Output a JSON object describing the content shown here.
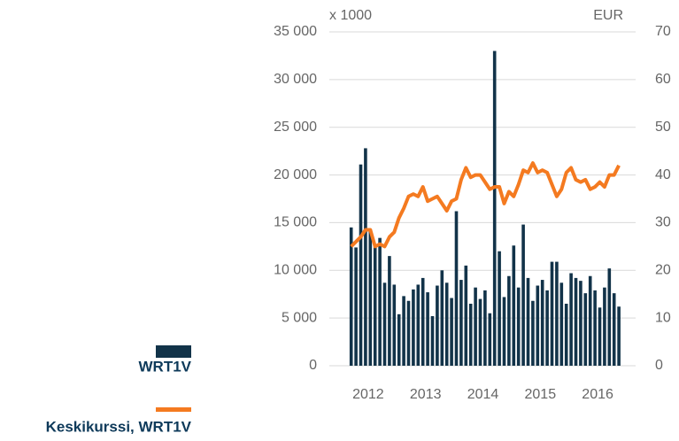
{
  "chart_data": {
    "type": "bar-line",
    "y_label": "x 1000",
    "y2_label": "EUR",
    "categories": [
      null,
      null,
      null,
      "2012",
      null,
      null,
      null,
      null,
      null,
      null,
      null,
      null,
      null,
      null,
      null,
      "2013",
      null,
      null,
      null,
      null,
      null,
      null,
      null,
      null,
      null,
      null,
      null,
      "2014",
      null,
      null,
      null,
      null,
      null,
      null,
      null,
      null,
      null,
      null,
      null,
      "2015",
      null,
      null,
      null,
      null,
      null,
      null,
      null,
      null,
      null,
      null,
      null,
      "2016",
      null,
      null,
      null,
      null,
      null
    ],
    "series": [
      {
        "name": "WRT1V",
        "kind": "bar",
        "color": "#123349",
        "values": [
          14500,
          12400,
          21100,
          22800,
          14300,
          12500,
          13400,
          8700,
          11500,
          8500,
          5400,
          7300,
          6800,
          8000,
          8500,
          9200,
          7700,
          5200,
          8400,
          10000,
          8700,
          7100,
          16200,
          9000,
          10500,
          6500,
          8200,
          7000,
          7900,
          5500,
          33000,
          12000,
          7200,
          9400,
          12600,
          8200,
          14800,
          9200,
          6800,
          8400,
          9000,
          7900,
          10900,
          10900,
          8700,
          6500,
          9700,
          9200,
          8900,
          7600,
          9400,
          7900,
          6100,
          8200,
          10200,
          7600,
          6200
        ]
      },
      {
        "name": "Keskikurssi, WRT1V",
        "kind": "line",
        "axis": "y2",
        "color": "#f47a20",
        "values": [
          25,
          26,
          27,
          28.5,
          28.5,
          25,
          25.5,
          25,
          27,
          28,
          31,
          33,
          35.5,
          36,
          35.5,
          37.5,
          34.5,
          35,
          35.5,
          34,
          32.5,
          34.5,
          35,
          39,
          41.5,
          39.5,
          40,
          40,
          38.5,
          37,
          37.5,
          37.5,
          34,
          36.5,
          35.5,
          38,
          41,
          40.5,
          42.5,
          40.5,
          41,
          40.5,
          38,
          35.5,
          37,
          40.5,
          41.5,
          39,
          38.5,
          39,
          37,
          37.5,
          38.5,
          37.5,
          40,
          40,
          42
        ]
      }
    ],
    "ylim": [
      0,
      35000
    ],
    "yticks": [
      0,
      {
        "value": 5000,
        "label": "5 000"
      },
      {
        "value": 10000,
        "label": "10 000"
      },
      {
        "value": 15000,
        "label": "15 000"
      },
      {
        "value": 20000,
        "label": "20 000"
      },
      {
        "value": 25000,
        "label": "25 000"
      },
      {
        "value": 30000,
        "label": "30 000"
      },
      {
        "value": 35000,
        "label": "35 000"
      }
    ],
    "y2lim": [
      0,
      70
    ],
    "y2ticks": [
      0,
      10,
      20,
      30,
      40,
      50,
      60,
      70
    ],
    "grid": true
  }
}
